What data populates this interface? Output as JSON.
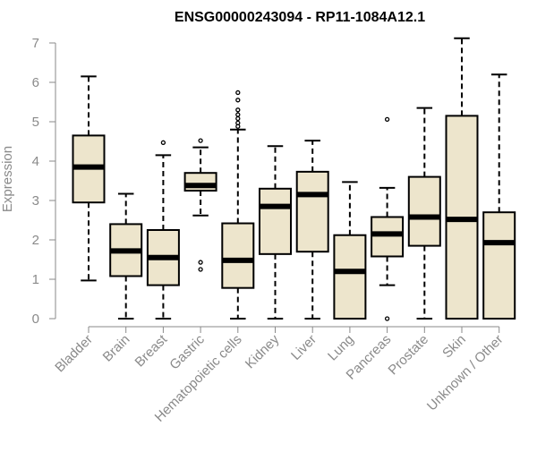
{
  "chart_data": {
    "type": "box",
    "title": "ENSG00000243094 - RP11-1084A12.1",
    "xlabel": "",
    "ylabel": "Expression",
    "ylim": [
      0,
      7
    ],
    "yticks": [
      0,
      1,
      2,
      3,
      4,
      5,
      6,
      7
    ],
    "grid": false,
    "colors": {
      "box_fill": "#ede5cc",
      "stroke": "#000000",
      "axis": "#8a8a8a"
    },
    "categories": [
      "Bladder",
      "Brain",
      "Breast",
      "Gastric",
      "Hematopoietic cells",
      "Kidney",
      "Liver",
      "Lung",
      "Pancreas",
      "Prostate",
      "Skin",
      "Unknown / Other"
    ],
    "boxes": [
      {
        "category": "Bladder",
        "min": 0.97,
        "q1": 2.95,
        "median": 3.85,
        "q3": 4.65,
        "max": 6.15,
        "outliers": []
      },
      {
        "category": "Brain",
        "min": 0.0,
        "q1": 1.08,
        "median": 1.72,
        "q3": 2.4,
        "max": 3.17,
        "outliers": []
      },
      {
        "category": "Breast",
        "min": 0.0,
        "q1": 0.85,
        "median": 1.55,
        "q3": 2.25,
        "max": 4.15,
        "outliers": [
          4.47
        ]
      },
      {
        "category": "Gastric",
        "min": 2.62,
        "q1": 3.25,
        "median": 3.38,
        "q3": 3.7,
        "max": 4.35,
        "outliers": [
          4.52,
          1.43,
          1.25
        ]
      },
      {
        "category": "Hematopoietic cells",
        "min": 0.0,
        "q1": 0.78,
        "median": 1.48,
        "q3": 2.42,
        "max": 4.8,
        "outliers": [
          4.88,
          4.97,
          5.08,
          5.18,
          5.3,
          5.55,
          5.74
        ]
      },
      {
        "category": "Kidney",
        "min": 0.0,
        "q1": 1.64,
        "median": 2.85,
        "q3": 3.3,
        "max": 4.38,
        "outliers": []
      },
      {
        "category": "Liver",
        "min": 0.0,
        "q1": 1.7,
        "median": 3.15,
        "q3": 3.73,
        "max": 4.52,
        "outliers": []
      },
      {
        "category": "Lung",
        "min": 0.0,
        "q1": 0.0,
        "median": 1.2,
        "q3": 2.12,
        "max": 3.47,
        "outliers": []
      },
      {
        "category": "Pancreas",
        "min": 0.85,
        "q1": 1.58,
        "median": 2.15,
        "q3": 2.58,
        "max": 3.32,
        "outliers": [
          5.06,
          0.0
        ]
      },
      {
        "category": "Prostate",
        "min": 0.0,
        "q1": 1.85,
        "median": 2.58,
        "q3": 3.6,
        "max": 5.35,
        "outliers": []
      },
      {
        "category": "Skin",
        "min": 0.0,
        "q1": 0.0,
        "median": 2.52,
        "q3": 5.15,
        "max": 7.12,
        "outliers": []
      },
      {
        "category": "Unknown / Other",
        "min": 0.0,
        "q1": 0.0,
        "median": 1.93,
        "q3": 2.7,
        "max": 6.2,
        "outliers": []
      }
    ]
  }
}
